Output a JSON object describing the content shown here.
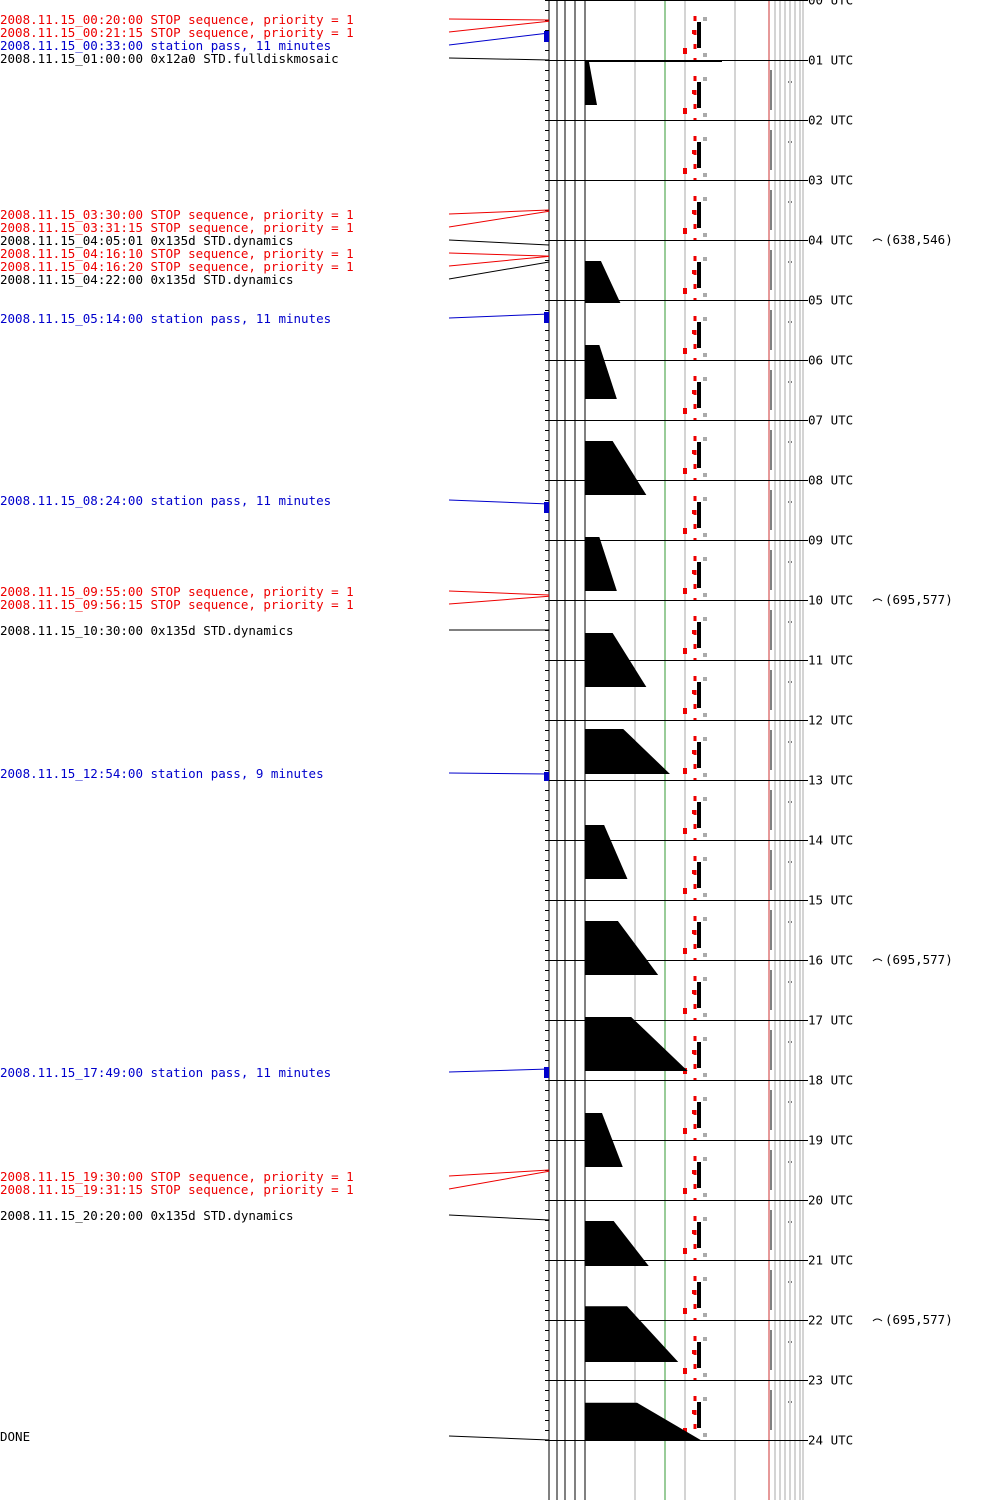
{
  "colors": {
    "stop": "#ee0000",
    "pass": "#0000cc",
    "command": "#000000",
    "grid": "#999999",
    "green": "#339933",
    "redline": "#cc3333",
    "gray": "#aaaaaa"
  },
  "events": [
    {
      "text": "2008.11.15_00:20:00 STOP sequence, priority = 1",
      "kind": "stop",
      "hour": 0.3333
    },
    {
      "text": "2008.11.15_00:21:15 STOP sequence, priority = 1",
      "kind": "stop",
      "hour": 0.3542
    },
    {
      "text": "2008.11.15_00:33:00 station pass, 11 minutes",
      "kind": "pass",
      "hour": 0.55,
      "dur": 11
    },
    {
      "text": "2008.11.15_01:00:00 0x12a0 STD.fulldiskmosaic",
      "kind": "command",
      "hour": 1.0
    },
    {
      "text": "2008.11.15_03:30:00 STOP sequence, priority = 1",
      "kind": "stop",
      "hour": 3.5
    },
    {
      "text": "2008.11.15_03:31:15 STOP sequence, priority = 1",
      "kind": "stop",
      "hour": 3.5208
    },
    {
      "text": "2008.11.15_04:05:01 0x135d STD.dynamics",
      "kind": "command",
      "hour": 4.0836
    },
    {
      "text": "2008.11.15_04:16:10 STOP sequence, priority = 1",
      "kind": "stop",
      "hour": 4.2694
    },
    {
      "text": "2008.11.15_04:16:20 STOP sequence, priority = 1",
      "kind": "stop",
      "hour": 4.2722
    },
    {
      "text": "2008.11.15_04:22:00 0x135d STD.dynamics",
      "kind": "command",
      "hour": 4.3667
    },
    {
      "text": "2008.11.15_05:14:00 station pass, 11 minutes",
      "kind": "pass",
      "hour": 5.2333,
      "dur": 11
    },
    {
      "text": "2008.11.15_08:24:00 station pass, 11 minutes",
      "kind": "pass",
      "hour": 8.4,
      "dur": 11
    },
    {
      "text": "2008.11.15_09:55:00 STOP sequence, priority = 1",
      "kind": "stop",
      "hour": 9.9167
    },
    {
      "text": "2008.11.15_09:56:15 STOP sequence, priority = 1",
      "kind": "stop",
      "hour": 9.9375
    },
    {
      "text": "2008.11.15_10:30:00 0x135d STD.dynamics",
      "kind": "command",
      "hour": 10.5
    },
    {
      "text": "2008.11.15_12:54:00 station pass, 9 minutes",
      "kind": "pass",
      "hour": 12.9,
      "dur": 9
    },
    {
      "text": "2008.11.15_17:49:00 station pass, 11 minutes",
      "kind": "pass",
      "hour": 17.8167,
      "dur": 11
    },
    {
      "text": "2008.11.15_19:30:00 STOP sequence, priority = 1",
      "kind": "stop",
      "hour": 19.5
    },
    {
      "text": "2008.11.15_19:31:15 STOP sequence, priority = 1",
      "kind": "stop",
      "hour": 19.5208
    },
    {
      "text": "2008.11.15_20:20:00 0x135d STD.dynamics",
      "kind": "command",
      "hour": 20.3333
    },
    {
      "text": "DONE",
      "kind": "command",
      "hour": 24.0
    }
  ],
  "hour_labels": [
    "00 UTC",
    "01 UTC",
    "02 UTC",
    "03 UTC",
    "04 UTC",
    "05 UTC",
    "06 UTC",
    "07 UTC",
    "08 UTC",
    "09 UTC",
    "10 UTC",
    "11 UTC",
    "12 UTC",
    "13 UTC",
    "14 UTC",
    "15 UTC",
    "16 UTC",
    "17 UTC",
    "18 UTC",
    "19 UTC",
    "20 UTC",
    "21 UTC",
    "22 UTC",
    "23 UTC",
    "24 UTC"
  ],
  "positions": [
    {
      "hour": 4,
      "text": "(638,546)"
    },
    {
      "hour": 10,
      "text": "(695,577)"
    },
    {
      "hour": 16,
      "text": "(695,577)"
    },
    {
      "hour": 22,
      "text": "(695,577)"
    }
  ],
  "triangles": [
    {
      "start": 4.35,
      "end": 5.05,
      "frac": 0.3
    },
    {
      "start": 5.75,
      "end": 6.65,
      "frac": 0.27
    },
    {
      "start": 7.35,
      "end": 8.25,
      "frac": 0.52
    },
    {
      "start": 8.95,
      "end": 9.85,
      "frac": 0.27
    },
    {
      "start": 10.55,
      "end": 11.45,
      "frac": 0.52
    },
    {
      "start": 12.15,
      "end": 12.9,
      "frac": 0.72
    },
    {
      "start": 13.75,
      "end": 14.65,
      "frac": 0.36
    },
    {
      "start": 15.35,
      "end": 16.25,
      "frac": 0.62
    },
    {
      "start": 16.95,
      "end": 17.85,
      "frac": 0.87
    },
    {
      "start": 18.55,
      "end": 19.45,
      "frac": 0.32
    },
    {
      "start": 20.35,
      "end": 21.1,
      "frac": 0.54
    },
    {
      "start": 21.77,
      "end": 22.7,
      "frac": 0.79
    },
    {
      "start": 23.38,
      "end": 24.0,
      "frac": 0.98
    }
  ]
}
